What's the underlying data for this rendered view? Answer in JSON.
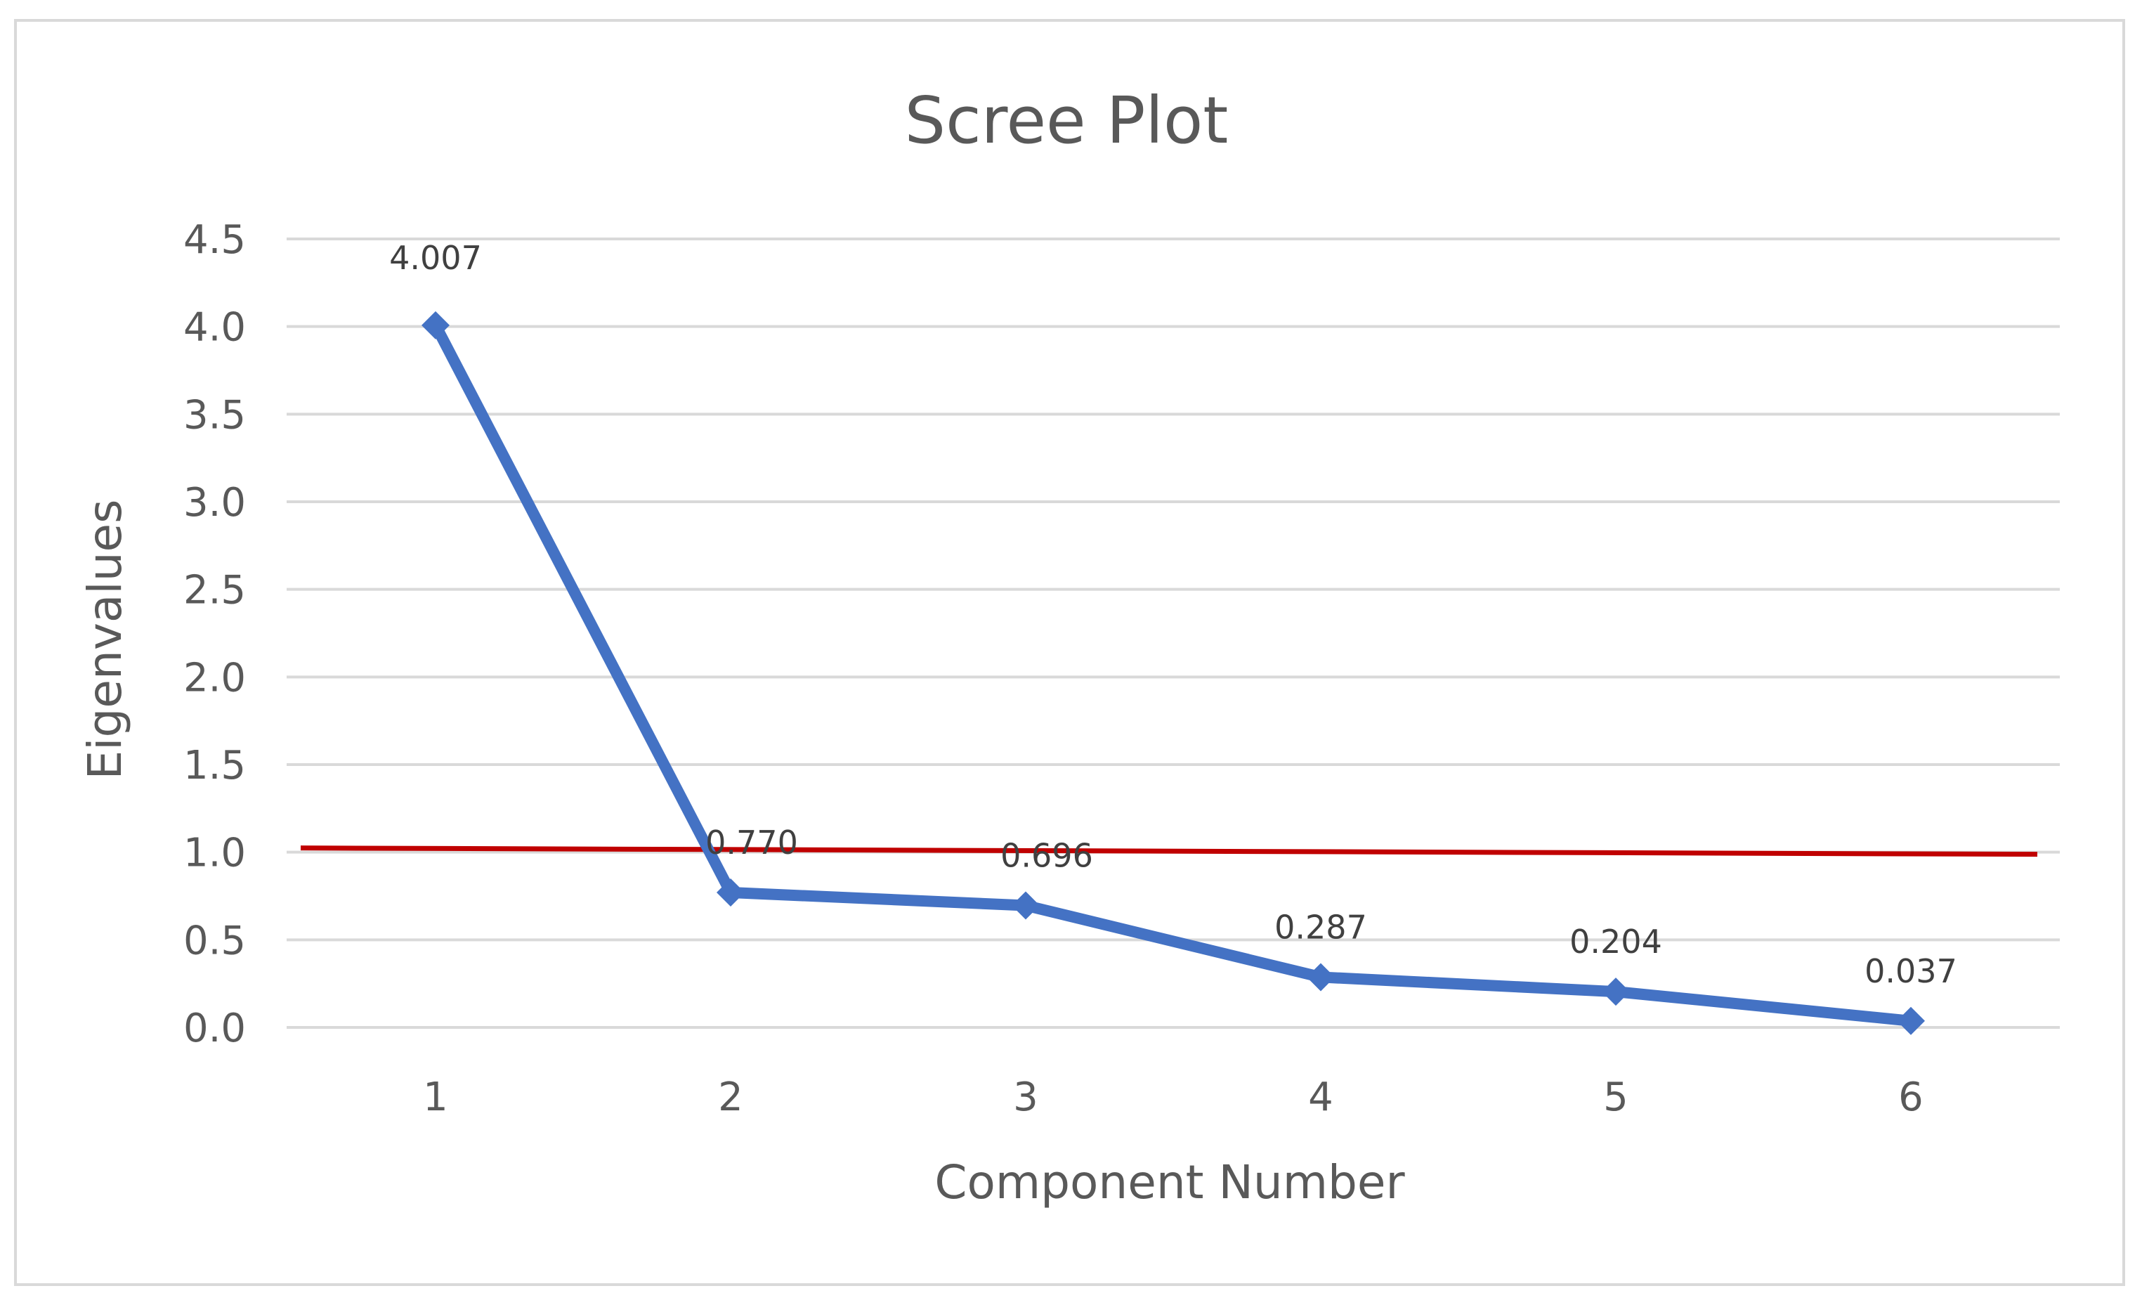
{
  "chart_data": {
    "type": "line",
    "title": "Scree Plot",
    "xlabel": "Component Number",
    "ylabel": "Eigenvalues",
    "categories": [
      "1",
      "2",
      "3",
      "4",
      "5",
      "6"
    ],
    "x": [
      1,
      2,
      3,
      4,
      5,
      6
    ],
    "ylim": [
      0,
      4.5
    ],
    "yticks": [
      "0.0",
      "0.5",
      "1.0",
      "1.5",
      "2.0",
      "2.5",
      "3.0",
      "3.5",
      "4.0",
      "4.5"
    ],
    "ytick_values": [
      0,
      0.5,
      1,
      1.5,
      2,
      2.5,
      3,
      3.5,
      4,
      4.5
    ],
    "grid": true,
    "series": [
      {
        "values": [
          4.007,
          0.77,
          0.696,
          0.287,
          0.204,
          0.037
        ],
        "labels": [
          "4.007",
          "0.770",
          "0.696",
          "0.287",
          "0.204",
          "0.037"
        ],
        "color": "#4472c4",
        "marker": "diamond"
      }
    ],
    "reference_line": {
      "y": 1.0,
      "color": "#c00000"
    }
  }
}
